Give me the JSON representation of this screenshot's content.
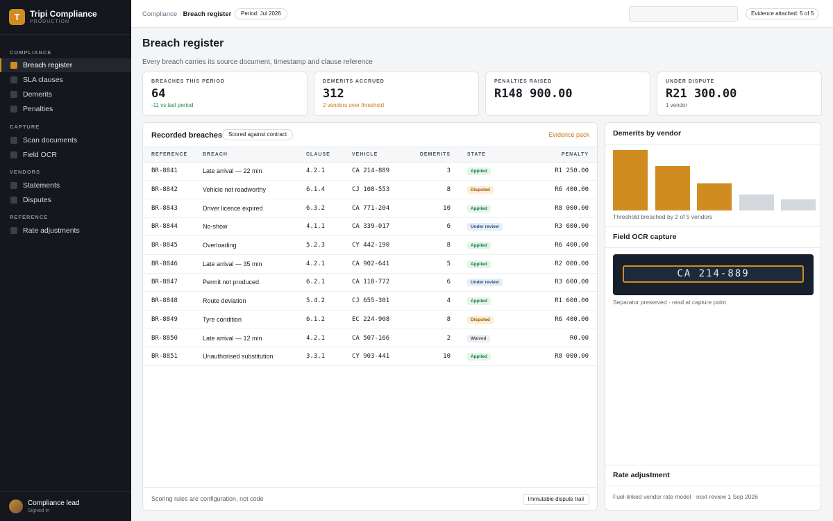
{
  "brand": {
    "logo_letter": "T",
    "name": "Tripi Compliance",
    "env": "PRODUCTION"
  },
  "sidebar": {
    "sections": [
      "COMPLIANCE",
      "CAPTURE",
      "VENDORS",
      "REFERENCE"
    ],
    "items": [
      {
        "label": "Breach register"
      },
      {
        "label": "SLA clauses"
      },
      {
        "label": "Demerits"
      },
      {
        "label": "Penalties"
      },
      {
        "label": "Scan documents"
      },
      {
        "label": "Field OCR"
      },
      {
        "label": "Statements"
      },
      {
        "label": "Disputes"
      },
      {
        "label": "Rate adjustments"
      }
    ],
    "user": {
      "name": "Compliance lead",
      "status": "Signed in"
    }
  },
  "topbar": {
    "crumb_root": "Compliance",
    "crumb_sep": " · ",
    "crumb_current": "Breach register",
    "period": "Period: Jul 2026",
    "search_value": "",
    "evidence": "Evidence attached: 5 of 5"
  },
  "page": {
    "title": "Breach register",
    "subtitle": "Every breach carries its source document, timestamp and clause reference"
  },
  "kpis": [
    {
      "label": "BREACHES THIS PERIOD",
      "value": "64",
      "note": "-11 vs last period"
    },
    {
      "label": "DEMERITS ACCRUED",
      "value": "312",
      "note": "2 vendors over threshold"
    },
    {
      "label": "PENALTIES RAISED",
      "value": "R148 900.00",
      "note": ""
    },
    {
      "label": "UNDER DISPUTE",
      "value": "R21 300.00",
      "note": "1 vendor"
    }
  ],
  "table": {
    "title": "Recorded breaches",
    "scored": "Scored against contract",
    "link": "Evidence pack",
    "columns": [
      "REFERENCE",
      "BREACH",
      "CLAUSE",
      "VEHICLE",
      "DEMERITS",
      "STATE",
      "PENALTY"
    ],
    "rows": [
      {
        "ref": "BR-8841",
        "breach": "Late arrival — 22 min",
        "clause": "4.2.1",
        "vehicle": "CA 214-889",
        "demerits": "3",
        "state": "Applied",
        "penalty": "R1 250.00"
      },
      {
        "ref": "BR-8842",
        "breach": "Vehicle not roadworthy",
        "clause": "6.1.4",
        "vehicle": "CJ 108-553",
        "demerits": "8",
        "state": "Disputed",
        "penalty": "R6 400.00"
      },
      {
        "ref": "BR-8843",
        "breach": "Driver licence expired",
        "clause": "6.3.2",
        "vehicle": "CA 771-204",
        "demerits": "10",
        "state": "Applied",
        "penalty": "R8 000.00"
      },
      {
        "ref": "BR-8844",
        "breach": "No-show",
        "clause": "4.1.1",
        "vehicle": "CA 339-017",
        "demerits": "6",
        "state": "Under review",
        "penalty": "R3 600.00"
      },
      {
        "ref": "BR-8845",
        "breach": "Overloading",
        "clause": "5.2.3",
        "vehicle": "CY 442-190",
        "demerits": "8",
        "state": "Applied",
        "penalty": "R6 400.00"
      },
      {
        "ref": "BR-8846",
        "breach": "Late arrival — 35 min",
        "clause": "4.2.1",
        "vehicle": "CA 902-641",
        "demerits": "5",
        "state": "Applied",
        "penalty": "R2 000.00"
      },
      {
        "ref": "BR-8847",
        "breach": "Permit not produced",
        "clause": "6.2.1",
        "vehicle": "CA 118-772",
        "demerits": "6",
        "state": "Under review",
        "penalty": "R3 600.00"
      },
      {
        "ref": "BR-8848",
        "breach": "Route deviation",
        "clause": "5.4.2",
        "vehicle": "CJ 655-301",
        "demerits": "4",
        "state": "Applied",
        "penalty": "R1 600.00"
      },
      {
        "ref": "BR-8849",
        "breach": "Tyre condition",
        "clause": "6.1.2",
        "vehicle": "EC 224-908",
        "demerits": "8",
        "state": "Disputed",
        "penalty": "R6 400.00"
      },
      {
        "ref": "BR-8850",
        "breach": "Late arrival — 12 min",
        "clause": "4.2.1",
        "vehicle": "CA 507-166",
        "demerits": "2",
        "state": "Waived",
        "penalty": "R0.00"
      },
      {
        "ref": "BR-8851",
        "breach": "Unauthorised substitution",
        "clause": "3.3.1",
        "vehicle": "CY 903-441",
        "demerits": "10",
        "state": "Applied",
        "penalty": "R8 000.00"
      }
    ],
    "foot_note": "Scoring rules are configuration, not code",
    "foot_pill": "Immutable dispute trail"
  },
  "demerits_panel": {
    "title": "Demerits by vendor",
    "note": "Threshold breached by 2 of 5 vendors"
  },
  "chart_data": {
    "type": "bar",
    "title": "Demerits by vendor",
    "categories": [
      "",
      "",
      "",
      "",
      ""
    ],
    "values": [
      100,
      73,
      45,
      26,
      18
    ],
    "colors": [
      "#d08c20",
      "#d08c20",
      "#d08c20",
      "#d3d7de",
      "#d3d7de"
    ],
    "ylim": [
      0,
      100
    ],
    "grid": false,
    "legend": "none"
  },
  "ocr_panel": {
    "title": "Field OCR capture",
    "plate": "CA 214-889",
    "note": "Separator preserved · read at capture point"
  },
  "rate_panel": {
    "title": "Rate adjustment",
    "note": "Fuel-linked vendor rate model · next review 1 Sep 2026"
  },
  "colors": {
    "accent": "#d08c20",
    "sidebar": "#14171d"
  }
}
